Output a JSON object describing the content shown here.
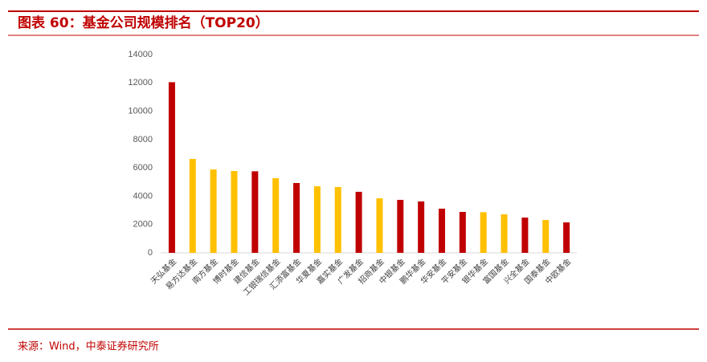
{
  "chart_data": {
    "type": "bar",
    "title": "图表 60：基金公司规模排名（TOP20）",
    "source": "来源：Wind，中泰证券研究所",
    "categories": [
      "天弘基金",
      "易方达基金",
      "南方基金",
      "博时基金",
      "建信基金",
      "工银瑞信基金",
      "汇添富基金",
      "华夏基金",
      "嘉实基金",
      "广发基金",
      "招商基金",
      "中银基金",
      "鹏华基金",
      "华安基金",
      "平安基金",
      "银华基金",
      "富国基金",
      "兴全基金",
      "国泰基金",
      "中欧基金"
    ],
    "values": [
      12050,
      6630,
      5890,
      5780,
      5760,
      5270,
      4930,
      4700,
      4650,
      4310,
      3850,
      3740,
      3630,
      3120,
      2890,
      2870,
      2720,
      2490,
      2320,
      2150
    ],
    "colors": [
      "#c00000",
      "#ffc000",
      "#ffc000",
      "#ffc000",
      "#c00000",
      "#ffc000",
      "#c00000",
      "#ffc000",
      "#ffc000",
      "#c00000",
      "#ffc000",
      "#c00000",
      "#c00000",
      "#c00000",
      "#c00000",
      "#ffc000",
      "#ffc000",
      "#c00000",
      "#ffc000",
      "#c00000"
    ],
    "ylim": [
      0,
      14000
    ],
    "yticks": [
      0,
      2000,
      4000,
      6000,
      8000,
      10000,
      12000,
      14000
    ],
    "grid": false
  }
}
